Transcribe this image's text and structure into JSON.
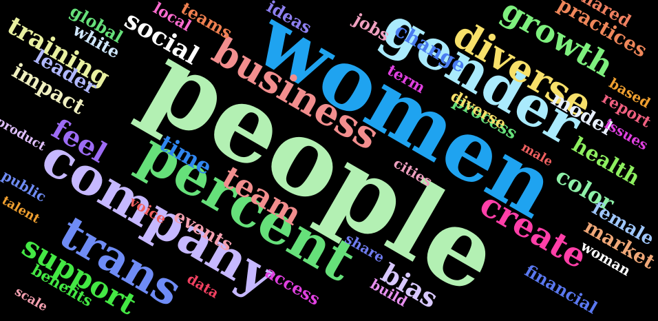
{
  "word_cloud": {
    "background": "#000000",
    "words": [
      {
        "text": "people",
        "color": "#b3f0b3"
      },
      {
        "text": "women",
        "color": "#1fa3f0"
      },
      {
        "text": "gender",
        "color": "#aaeafc"
      },
      {
        "text": "business",
        "color": "#f28e8e"
      },
      {
        "text": "percent",
        "color": "#66e07a"
      },
      {
        "text": "company",
        "color": "#c6b8ff"
      },
      {
        "text": "trans",
        "color": "#6f8cf5"
      },
      {
        "text": "diverse",
        "color": "#f7e06a"
      },
      {
        "text": "growth",
        "color": "#7ef07e"
      },
      {
        "text": "create",
        "color": "#ff3fa8"
      },
      {
        "text": "team",
        "color": "#f28e8e"
      },
      {
        "text": "support",
        "color": "#44e844"
      },
      {
        "text": "social",
        "color": "#ffffff"
      },
      {
        "text": "training",
        "color": "#e8f0a0"
      },
      {
        "text": "feel",
        "color": "#9d6cf5"
      },
      {
        "text": "time",
        "color": "#2f86f0"
      },
      {
        "text": "color",
        "color": "#8ef0a8"
      },
      {
        "text": "health",
        "color": "#8ef060"
      },
      {
        "text": "impact",
        "color": "#f0f0c0"
      },
      {
        "text": "bias",
        "color": "#d8c8ff"
      },
      {
        "text": "change",
        "color": "#4a7cf0"
      },
      {
        "text": "model",
        "color": "#e8f0ff"
      },
      {
        "text": "practices",
        "color": "#f0875a"
      },
      {
        "text": "leader",
        "color": "#b0b8ff"
      },
      {
        "text": "events",
        "color": "#f4a0b0"
      },
      {
        "text": "market",
        "color": "#f0a878"
      },
      {
        "text": "financial",
        "color": "#5a78f0"
      },
      {
        "text": "female",
        "color": "#a0c8ff"
      },
      {
        "text": "woman",
        "color": "#ffffff"
      },
      {
        "text": "process",
        "color": "#66e07a"
      },
      {
        "text": "shared",
        "color": "#f08060"
      },
      {
        "text": "jobs",
        "color": "#f0a0c0"
      },
      {
        "text": "ideas",
        "color": "#8e80f0"
      },
      {
        "text": "teams",
        "color": "#f08050"
      },
      {
        "text": "local",
        "color": "#ff6cd0"
      },
      {
        "text": "global",
        "color": "#66e07a"
      },
      {
        "text": "white",
        "color": "#d0e8ff"
      },
      {
        "text": "public",
        "color": "#6f8cf5"
      },
      {
        "text": "talent",
        "color": "#f0a030"
      },
      {
        "text": "product",
        "color": "#e0c0ff"
      },
      {
        "text": "benefits",
        "color": "#44e844"
      },
      {
        "text": "scale",
        "color": "#f4a0b0"
      },
      {
        "text": "share",
        "color": "#6f7cf0"
      },
      {
        "text": "access",
        "color": "#e040e0"
      },
      {
        "text": "data",
        "color": "#f04060"
      },
      {
        "text": "voice",
        "color": "#f06060"
      },
      {
        "text": "term",
        "color": "#e040e0"
      },
      {
        "text": "cities",
        "color": "#f0a0c0"
      },
      {
        "text": "male",
        "color": "#f06060"
      },
      {
        "text": "build",
        "color": "#e890f0"
      },
      {
        "text": "issues",
        "color": "#e040e0"
      },
      {
        "text": "report",
        "color": "#f06080"
      },
      {
        "text": "based",
        "color": "#f0a030"
      },
      {
        "text": "diverse",
        "color": "#f7e06a"
      },
      {
        "text": "",
        "color": "#cccccc"
      }
    ]
  }
}
